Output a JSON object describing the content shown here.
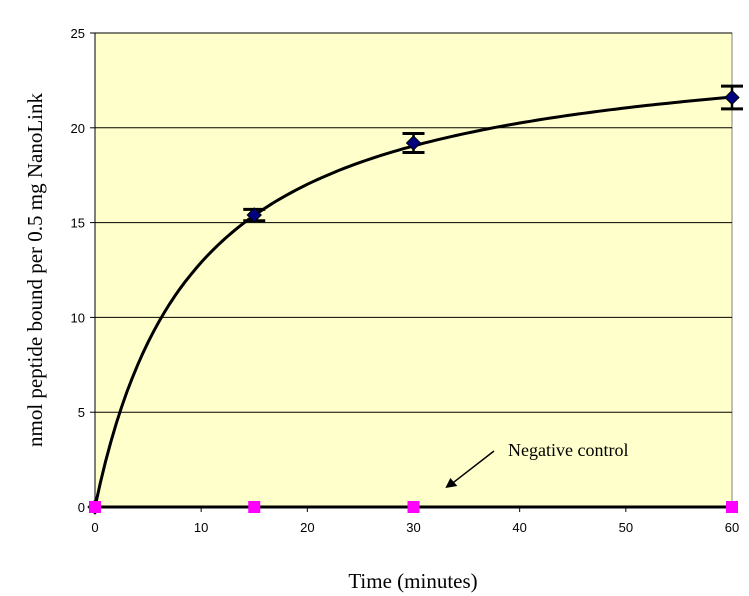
{
  "chart_data": {
    "type": "scatter",
    "xlabel": "Time (minutes)",
    "ylabel": "nmol peptide bound per 0.5 mg NanoLink",
    "xlim": [
      0,
      60
    ],
    "ylim": [
      0,
      25
    ],
    "x_ticks": [
      "0",
      "10",
      "20",
      "30",
      "40",
      "50",
      "60"
    ],
    "y_ticks": [
      "0",
      "5",
      "10",
      "15",
      "20",
      "25"
    ],
    "grid": "horizontal",
    "plot_background": "#FFFFCC",
    "series": [
      {
        "marker": "diamond",
        "color": "#000080",
        "x": [
          0,
          15,
          30,
          60
        ],
        "y": [
          0,
          15.4,
          19.2,
          21.6
        ],
        "error": [
          0,
          0.3,
          0.5,
          0.6
        ],
        "fit_curve": true
      },
      {
        "marker": "square",
        "color": "#FF00FF",
        "x": [
          0,
          15,
          30,
          60
        ],
        "y": [
          0,
          0,
          0,
          0
        ]
      }
    ],
    "annotations": [
      {
        "text": "Negative control",
        "arrow_to": [
          33,
          1
        ]
      }
    ]
  }
}
